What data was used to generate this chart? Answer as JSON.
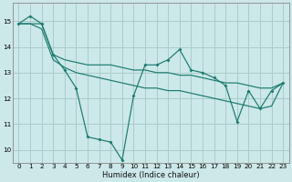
{
  "xlabel": "Humidex (Indice chaleur)",
  "bg_color": "#cce8e8",
  "grid_color": "#aacccc",
  "line_color": "#1a7a6e",
  "xlim": [
    -0.5,
    23.5
  ],
  "ylim": [
    9.5,
    15.7
  ],
  "yticks": [
    10,
    11,
    12,
    13,
    14,
    15
  ],
  "xticks": [
    0,
    1,
    2,
    3,
    4,
    5,
    6,
    7,
    8,
    9,
    10,
    11,
    12,
    13,
    14,
    15,
    16,
    17,
    18,
    19,
    20,
    21,
    22,
    23
  ],
  "s1_x": [
    0,
    1,
    2,
    3,
    4,
    5,
    6,
    7,
    8,
    9,
    10,
    11,
    12,
    13,
    14,
    15,
    16,
    17,
    18,
    19,
    20,
    21,
    22,
    23
  ],
  "s1_y": [
    14.9,
    15.2,
    14.9,
    13.7,
    13.1,
    12.4,
    10.5,
    10.4,
    10.3,
    9.6,
    12.1,
    13.3,
    13.3,
    13.5,
    13.9,
    13.1,
    13.0,
    12.8,
    12.5,
    11.1,
    12.3,
    11.6,
    12.3,
    12.6
  ],
  "s2_x": [
    0,
    1,
    2,
    3,
    4,
    5,
    6,
    7,
    8,
    9,
    10,
    11,
    12,
    13,
    14,
    15,
    16,
    17,
    18,
    19,
    20,
    21,
    22,
    23
  ],
  "s2_y": [
    14.9,
    14.9,
    14.9,
    13.7,
    13.5,
    13.4,
    13.3,
    13.3,
    13.3,
    13.2,
    13.1,
    13.1,
    13.0,
    13.0,
    12.9,
    12.9,
    12.8,
    12.7,
    12.6,
    12.6,
    12.5,
    12.4,
    12.4,
    12.6
  ],
  "s3_x": [
    0,
    1,
    2,
    3,
    4,
    5,
    6,
    7,
    8,
    9,
    10,
    11,
    12,
    13,
    14,
    15,
    16,
    17,
    18,
    19,
    20,
    21,
    22,
    23
  ],
  "s3_y": [
    14.9,
    14.9,
    14.7,
    13.5,
    13.2,
    13.0,
    12.9,
    12.8,
    12.7,
    12.6,
    12.5,
    12.4,
    12.4,
    12.3,
    12.3,
    12.2,
    12.1,
    12.0,
    11.9,
    11.8,
    11.7,
    11.6,
    11.7,
    12.6
  ]
}
